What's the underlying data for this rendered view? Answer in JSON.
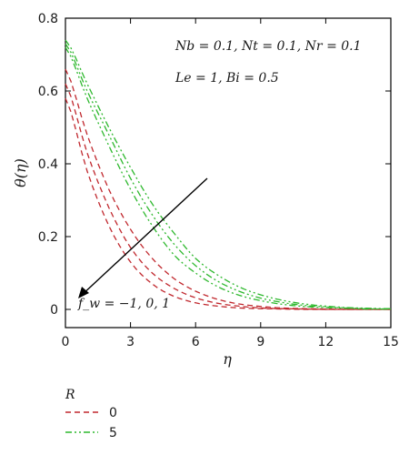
{
  "chart_data": {
    "type": "line",
    "xlabel": "η",
    "ylabel": "θ(η)",
    "xlim": [
      0,
      15
    ],
    "ylim": [
      -0.05,
      0.8
    ],
    "xticks": [
      "0",
      "3",
      "6",
      "9",
      "12",
      "15"
    ],
    "yticks": [
      "0",
      "0.2",
      "0.4",
      "0.6",
      "0.8"
    ],
    "grid": false,
    "annotations": [
      "Nb = 0.1, Nt = 0.1, Nr = 0.1",
      "Le = 1, Bi = 0.5",
      "f_w = −1, 0, 1"
    ],
    "legend": {
      "title": "R",
      "position": "bottom-left",
      "entries": [
        "0",
        "5"
      ]
    },
    "colors": {
      "R0": "#c0272d",
      "R5": "#2db82d"
    },
    "x": [
      0,
      1,
      2,
      3,
      4,
      5,
      6,
      7,
      8,
      9,
      10,
      11,
      12,
      13,
      14,
      15
    ],
    "series": [
      {
        "name": "0",
        "fw": "-1",
        "values": [
          0.66,
          0.48,
          0.33,
          0.22,
          0.14,
          0.085,
          0.05,
          0.028,
          0.015,
          0.008,
          0.004,
          0.002,
          0.001,
          0.0,
          0.0,
          0.0
        ]
      },
      {
        "name": "0",
        "fw": "0",
        "values": [
          0.62,
          0.43,
          0.28,
          0.17,
          0.1,
          0.058,
          0.032,
          0.017,
          0.009,
          0.004,
          0.002,
          0.001,
          0.0,
          0.0,
          0.0,
          0.0
        ]
      },
      {
        "name": "0",
        "fw": "1",
        "values": [
          0.58,
          0.38,
          0.23,
          0.13,
          0.07,
          0.036,
          0.018,
          0.009,
          0.004,
          0.002,
          0.001,
          0.0,
          0.0,
          0.0,
          0.0,
          0.0
        ]
      },
      {
        "name": "5",
        "fw": "-1",
        "values": [
          0.74,
          0.62,
          0.5,
          0.39,
          0.29,
          0.21,
          0.14,
          0.095,
          0.062,
          0.04,
          0.025,
          0.015,
          0.009,
          0.005,
          0.003,
          0.002
        ]
      },
      {
        "name": "5",
        "fw": "0",
        "values": [
          0.73,
          0.6,
          0.48,
          0.36,
          0.26,
          0.18,
          0.12,
          0.078,
          0.05,
          0.031,
          0.019,
          0.011,
          0.007,
          0.004,
          0.002,
          0.001
        ]
      },
      {
        "name": "5",
        "fw": "1",
        "values": [
          0.72,
          0.58,
          0.45,
          0.33,
          0.23,
          0.15,
          0.1,
          0.063,
          0.039,
          0.024,
          0.014,
          0.008,
          0.005,
          0.003,
          0.001,
          0.001
        ]
      }
    ]
  }
}
